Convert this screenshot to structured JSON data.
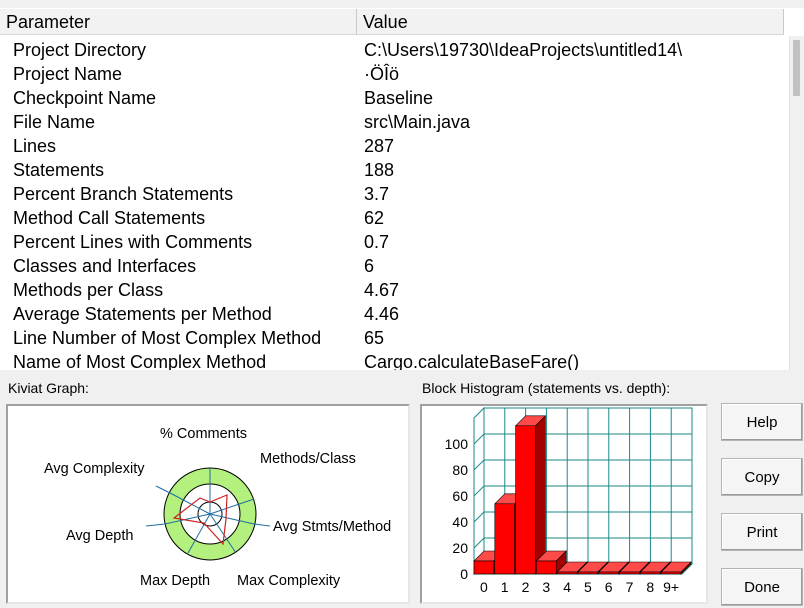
{
  "table": {
    "headers": [
      "Parameter",
      "Value"
    ],
    "rows": [
      {
        "param": "Project Directory",
        "value": "C:\\Users\\19730\\IdeaProjects\\untitled14\\"
      },
      {
        "param": "Project Name",
        "value": "·ÖÎö"
      },
      {
        "param": "Checkpoint Name",
        "value": "Baseline"
      },
      {
        "param": "File Name",
        "value": "src\\Main.java"
      },
      {
        "param": "Lines",
        "value": "287"
      },
      {
        "param": "Statements",
        "value": "188"
      },
      {
        "param": "Percent Branch Statements",
        "value": "3.7"
      },
      {
        "param": "Method Call Statements",
        "value": "62"
      },
      {
        "param": "Percent Lines with Comments",
        "value": "0.7"
      },
      {
        "param": "Classes and Interfaces",
        "value": "6"
      },
      {
        "param": "Methods per Class",
        "value": "4.67"
      },
      {
        "param": "Average Statements per Method",
        "value": "4.46"
      },
      {
        "param": "Line Number of Most Complex Method",
        "value": "65"
      },
      {
        "param": "Name of Most Complex Method",
        "value": "Cargo.calculateBaseFare()"
      }
    ]
  },
  "kiviat": {
    "label": "Kiviat Graph:",
    "axes": [
      "% Comments",
      "Methods/Class",
      "Avg Stmts/Method",
      "Max Complexity",
      "Max Depth",
      "Avg Depth",
      "Avg Complexity"
    ]
  },
  "histogram": {
    "label": "Block Histogram (statements vs. depth):"
  },
  "chart_data": {
    "type": "bar",
    "categories": [
      "0",
      "1",
      "2",
      "3",
      "4",
      "5",
      "6",
      "7",
      "8",
      "9+"
    ],
    "values": [
      10,
      54,
      114,
      10,
      0,
      0,
      0,
      0,
      0,
      0
    ],
    "yticks": [
      0,
      20,
      40,
      60,
      80,
      100
    ],
    "ylim": [
      0,
      120
    ],
    "color": "#ff0000"
  },
  "buttons": {
    "help": "Help",
    "copy": "Copy",
    "print": "Print",
    "done": "Done"
  }
}
